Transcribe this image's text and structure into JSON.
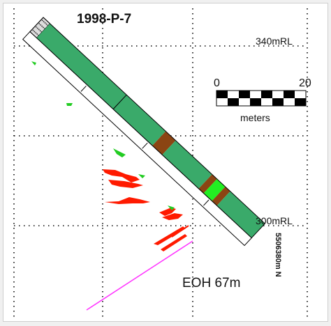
{
  "figure": {
    "title": "1998-P-7",
    "elevation_upper": "340mRL",
    "elevation_lower": "300mRL",
    "northing": "5506380m N",
    "end_of_hole": "EOH 67m"
  },
  "scale_bar": {
    "start_label": "0",
    "end_label": "20",
    "unit_label": "meters"
  },
  "colors": {
    "rock_green": "#3aaa6a",
    "fault_brown": "#8b4513",
    "bright_green": "#22ee22",
    "overburden": "#dddddd",
    "assay_red": "#ff1a00",
    "assay_green": "#22cc22",
    "trace_magenta": "#ff33ff",
    "grid": "#000000"
  },
  "hole": {
    "units_from_collar": [
      {
        "unit": "overburden",
        "from_m": 0,
        "to_m": 2
      },
      {
        "unit": "rock_green",
        "from_m": 2,
        "to_m": 37
      },
      {
        "unit": "fault_brown",
        "from_m": 37,
        "to_m": 40
      },
      {
        "unit": "rock_green",
        "from_m": 40,
        "to_m": 51
      },
      {
        "unit": "fault_brown",
        "from_m": 51,
        "to_m": 52.5
      },
      {
        "unit": "bright_green",
        "from_m": 52.5,
        "to_m": 55
      },
      {
        "unit": "fault_brown",
        "from_m": 55,
        "to_m": 56.5
      },
      {
        "unit": "rock_green",
        "from_m": 56.5,
        "to_m": 67
      }
    ]
  }
}
